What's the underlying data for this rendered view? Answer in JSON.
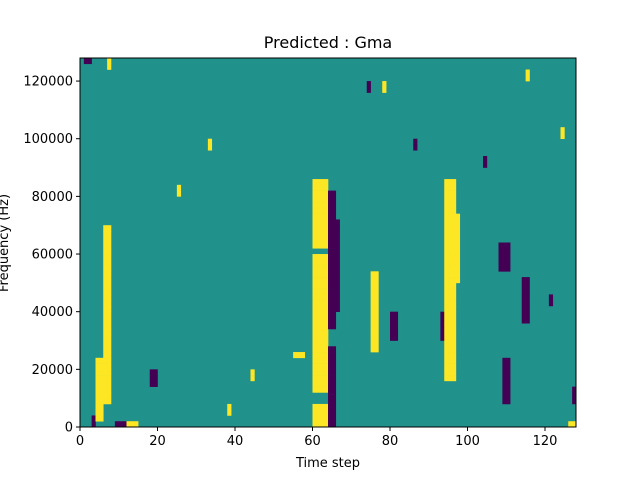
{
  "chart_data": {
    "type": "heatmap",
    "title": "Predicted : Gma",
    "xlabel": "Time step",
    "ylabel": "Frequency (Hz)",
    "xlim": [
      0,
      128
    ],
    "ylim": [
      0,
      128000
    ],
    "x_ticks": [
      0,
      20,
      40,
      60,
      80,
      100,
      120
    ],
    "x_tick_labels": [
      "0",
      "20",
      "40",
      "60",
      "80",
      "100",
      "120"
    ],
    "y_ticks": [
      0,
      20000,
      40000,
      60000,
      80000,
      100000,
      120000
    ],
    "y_tick_labels": [
      "0",
      "20000",
      "40000",
      "60000",
      "80000",
      "100000",
      "120000"
    ],
    "grid": false,
    "colormap": "viridis",
    "value_levels": [
      0,
      1,
      2
    ],
    "colors": {
      "low": "#440154",
      "mid": "#21918c",
      "high": "#fde725"
    },
    "n_time_steps": 128,
    "n_freq_bins": 64,
    "bin_height_hz": 2000,
    "background_value": 1,
    "cells": [
      {
        "t": [
          60,
          63
        ],
        "f": [
          0,
          8000
        ],
        "v": 2
      },
      {
        "t": [
          60,
          63
        ],
        "f": [
          12000,
          60000
        ],
        "v": 2
      },
      {
        "t": [
          60,
          63
        ],
        "f": [
          62000,
          86000
        ],
        "v": 2
      },
      {
        "t": [
          64,
          65
        ],
        "f": [
          0,
          28000
        ],
        "v": 0
      },
      {
        "t": [
          64,
          65
        ],
        "f": [
          34000,
          82000
        ],
        "v": 0
      },
      {
        "t": [
          66,
          66
        ],
        "f": [
          40000,
          72000
        ],
        "v": 0
      },
      {
        "t": [
          75,
          76
        ],
        "f": [
          26000,
          54000
        ],
        "v": 2
      },
      {
        "t": [
          80,
          81
        ],
        "f": [
          30000,
          40000
        ],
        "v": 0
      },
      {
        "t": [
          94,
          96
        ],
        "f": [
          16000,
          86000
        ],
        "v": 2
      },
      {
        "t": [
          93,
          93
        ],
        "f": [
          30000,
          40000
        ],
        "v": 0
      },
      {
        "t": [
          97,
          97
        ],
        "f": [
          50000,
          74000
        ],
        "v": 2
      },
      {
        "t": [
          4,
          5
        ],
        "f": [
          2000,
          24000
        ],
        "v": 2
      },
      {
        "t": [
          6,
          7
        ],
        "f": [
          8000,
          70000
        ],
        "v": 2
      },
      {
        "t": [
          3,
          3
        ],
        "f": [
          0,
          4000
        ],
        "v": 0
      },
      {
        "t": [
          9,
          11
        ],
        "f": [
          0,
          2000
        ],
        "v": 0
      },
      {
        "t": [
          12,
          14
        ],
        "f": [
          0,
          2000
        ],
        "v": 2
      },
      {
        "t": [
          18,
          19
        ],
        "f": [
          14000,
          20000
        ],
        "v": 0
      },
      {
        "t": [
          55,
          57
        ],
        "f": [
          24000,
          26000
        ],
        "v": 2
      },
      {
        "t": [
          121,
          121
        ],
        "f": [
          42000,
          46000
        ],
        "v": 0
      },
      {
        "t": [
          126,
          127
        ],
        "f": [
          0,
          2000
        ],
        "v": 2
      },
      {
        "t": [
          127,
          127
        ],
        "f": [
          8000,
          14000
        ],
        "v": 0
      },
      {
        "t": [
          109,
          110
        ],
        "f": [
          8000,
          24000
        ],
        "v": 0
      },
      {
        "t": [
          114,
          115
        ],
        "f": [
          36000,
          52000
        ],
        "v": 0
      },
      {
        "t": [
          108,
          110
        ],
        "f": [
          54000,
          64000
        ],
        "v": 0
      },
      {
        "t": [
          1,
          2
        ],
        "f": [
          126000,
          128000
        ],
        "v": 0
      },
      {
        "t": [
          7,
          7
        ],
        "f": [
          124000,
          128000
        ],
        "v": 2
      },
      {
        "t": [
          74,
          74
        ],
        "f": [
          116000,
          120000
        ],
        "v": 0
      },
      {
        "t": [
          78,
          78
        ],
        "f": [
          116000,
          120000
        ],
        "v": 2
      },
      {
        "t": [
          115,
          115
        ],
        "f": [
          120000,
          124000
        ],
        "v": 2
      },
      {
        "t": [
          124,
          124
        ],
        "f": [
          100000,
          104000
        ],
        "v": 2
      },
      {
        "t": [
          38,
          38
        ],
        "f": [
          4000,
          8000
        ],
        "v": 2
      },
      {
        "t": [
          44,
          44
        ],
        "f": [
          16000,
          20000
        ],
        "v": 2
      },
      {
        "t": [
          25,
          25
        ],
        "f": [
          80000,
          84000
        ],
        "v": 2
      },
      {
        "t": [
          33,
          33
        ],
        "f": [
          96000,
          100000
        ],
        "v": 2
      },
      {
        "t": [
          86,
          86
        ],
        "f": [
          96000,
          100000
        ],
        "v": 0
      },
      {
        "t": [
          104,
          104
        ],
        "f": [
          90000,
          94000
        ],
        "v": 0
      }
    ]
  }
}
